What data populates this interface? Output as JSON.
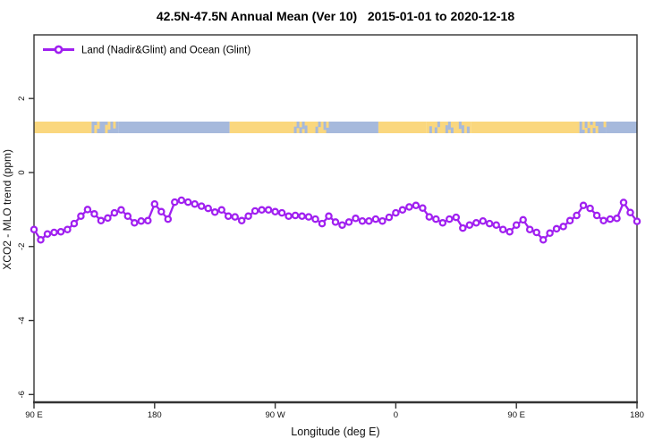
{
  "page": {
    "background": "#ffffff"
  },
  "chart_data": {
    "type": "line",
    "title": "42.5N-47.5N Annual Mean (Ver 10)   2015-01-01 to 2020-12-18",
    "xlabel": "Longitude (deg E)",
    "ylabel": "XCO2 - MLO trend (ppm)",
    "grid": false,
    "legend": {
      "position": "top-left",
      "entries": [
        {
          "label": "Land (Nadir&Glint) and Ocean (Glint)",
          "color": "#A020F0",
          "marker": "open-circle-line"
        }
      ]
    },
    "axes": {
      "xlim": [
        90,
        540
      ],
      "ylim": [
        -6.21,
        3.72
      ],
      "x_ticks": [
        {
          "pos": 90,
          "label": "90 E"
        },
        {
          "pos": 180,
          "label": "180"
        },
        {
          "pos": 270,
          "label": "90 W"
        },
        {
          "pos": 360,
          "label": "0"
        },
        {
          "pos": 450,
          "label": "90 E"
        },
        {
          "pos": 540,
          "label": "180"
        }
      ],
      "y_ticks": [
        {
          "pos": 2,
          "label": "2"
        },
        {
          "pos": 0,
          "label": "0"
        },
        {
          "pos": -2,
          "label": "-2"
        },
        {
          "pos": -4,
          "label": "-4"
        },
        {
          "pos": -6,
          "label": "-6"
        }
      ]
    },
    "series": [
      {
        "name": "Land (Nadir&Glint) and Ocean (Glint)",
        "color": "#A020F0",
        "marker": "open-circle",
        "x_deg": [
          90,
          95,
          100,
          105,
          110,
          115,
          120,
          125,
          130,
          135,
          140,
          145,
          150,
          155,
          160,
          165,
          170,
          175,
          180,
          185,
          190,
          195,
          200,
          205,
          210,
          215,
          220,
          225,
          230,
          235,
          240,
          245,
          250,
          255,
          260,
          265,
          270,
          275,
          280,
          285,
          290,
          295,
          300,
          305,
          310,
          315,
          320,
          325,
          330,
          335,
          340,
          345,
          350,
          355,
          360,
          365,
          370,
          375,
          380,
          385,
          390,
          395,
          400,
          405,
          410,
          415,
          420,
          425,
          430,
          435,
          440,
          445,
          450,
          455,
          460,
          465,
          470,
          475,
          480,
          485,
          490,
          495,
          500,
          505,
          510,
          515,
          520,
          525,
          530,
          535,
          540
        ],
        "values": [
          -1.54,
          -1.82,
          -1.66,
          -1.62,
          -1.6,
          -1.54,
          -1.38,
          -1.18,
          -1.0,
          -1.12,
          -1.3,
          -1.23,
          -1.09,
          -1.01,
          -1.18,
          -1.36,
          -1.31,
          -1.3,
          -0.85,
          -1.06,
          -1.26,
          -0.8,
          -0.75,
          -0.8,
          -0.85,
          -0.91,
          -0.97,
          -1.07,
          -1.01,
          -1.18,
          -1.2,
          -1.3,
          -1.18,
          -1.04,
          -1.01,
          -1.01,
          -1.06,
          -1.09,
          -1.18,
          -1.16,
          -1.18,
          -1.2,
          -1.26,
          -1.38,
          -1.18,
          -1.34,
          -1.42,
          -1.34,
          -1.24,
          -1.31,
          -1.31,
          -1.26,
          -1.31,
          -1.21,
          -1.09,
          -1.01,
          -0.93,
          -0.89,
          -0.96,
          -1.2,
          -1.26,
          -1.36,
          -1.26,
          -1.21,
          -1.5,
          -1.42,
          -1.36,
          -1.31,
          -1.38,
          -1.42,
          -1.54,
          -1.6,
          -1.42,
          -1.28,
          -1.54,
          -1.62,
          -1.82,
          -1.64,
          -1.52,
          -1.46,
          -1.3,
          -1.16,
          -0.89,
          -0.97,
          -1.16,
          -1.3,
          -1.26,
          -1.24,
          -0.81,
          -1.08,
          -1.32
        ]
      }
    ],
    "land_ocean_band": {
      "description": "land/ocean coastline strip for 42.5N-47.5N",
      "land_color": "#FAD77E",
      "ocean_color": "#A6B9DC",
      "segments": [
        {
          "from": 90,
          "to": 133,
          "type": "land"
        },
        {
          "from": 133,
          "to": 153,
          "type": "coast"
        },
        {
          "from": 153,
          "to": 236,
          "type": "ocean"
        },
        {
          "from": 236,
          "to": 284,
          "type": "land"
        },
        {
          "from": 284,
          "to": 310,
          "type": "lakes"
        },
        {
          "from": 310,
          "to": 347,
          "type": "ocean"
        },
        {
          "from": 347,
          "to": 383,
          "type": "land"
        },
        {
          "from": 383,
          "to": 416,
          "type": "lakes"
        },
        {
          "from": 416,
          "to": 497,
          "type": "land"
        },
        {
          "from": 497,
          "to": 517,
          "type": "coast"
        },
        {
          "from": 517,
          "to": 540,
          "type": "ocean"
        }
      ]
    },
    "colors": {
      "series": "#A020F0",
      "axis": "#333333",
      "text": "#111111",
      "land": "#FAD77E",
      "ocean": "#A6B9DC"
    }
  }
}
